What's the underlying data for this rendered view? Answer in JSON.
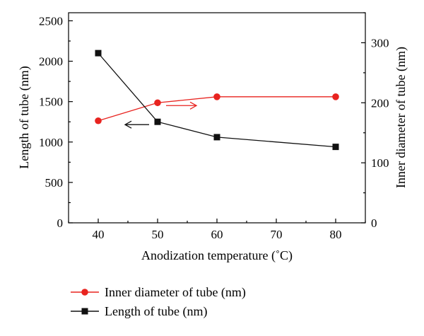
{
  "chart_data": {
    "type": "line",
    "title": "",
    "xlabel": "Anodization temperature (˚C)",
    "ylabel_left": "Length of tube (nm)",
    "ylabel_right": "Inner diameter of tube (nm)",
    "xlim": [
      35,
      85
    ],
    "ylim_left": [
      0,
      2600
    ],
    "ylim_right": [
      0,
      350
    ],
    "x_ticks": [
      "40",
      "50",
      "60",
      "70",
      "80"
    ],
    "y_left_ticks": [
      "0",
      "500",
      "1000",
      "1500",
      "2000",
      "2500"
    ],
    "y_right_ticks": [
      "0",
      "100",
      "200",
      "300"
    ],
    "grid": false,
    "legend_position": "bottom",
    "series": [
      {
        "name": "Inner diameter of tube (nm)",
        "axis": "right",
        "color": "#e8231f",
        "marker": "circle",
        "x": [
          40,
          50,
          60,
          80
        ],
        "values": [
          170,
          200,
          210,
          210
        ]
      },
      {
        "name": "Length of tube (nm)",
        "axis": "left",
        "color": "#111111",
        "marker": "square",
        "x": [
          40,
          50,
          60,
          80
        ],
        "values": [
          2100,
          1250,
          1060,
          940
        ]
      }
    ],
    "annotations": [
      {
        "type": "arrow",
        "direction": "left",
        "color": "#111111",
        "points_to_axis": "left"
      },
      {
        "type": "arrow",
        "direction": "right",
        "color": "#e8231f",
        "points_to_axis": "right"
      }
    ]
  }
}
